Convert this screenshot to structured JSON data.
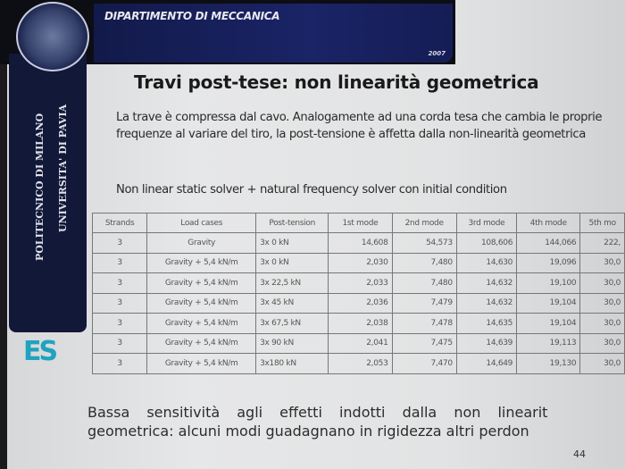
{
  "header": {
    "department": "DIPARTIMENTO DI MECCANICA",
    "year": "2007"
  },
  "sidebar": {
    "line1": "POLITECNICO DI MILANO",
    "line2": "UNIVERSITA' DI PAVIA",
    "logo": "ES"
  },
  "slide": {
    "title": "Travi post-tese: non linearità geometrica",
    "paragraph": "La trave è compressa dal cavo. Analogamente ad una corda tesa che cambia le proprie frequenze al variare del tiro, la post-tensione è affetta dalla non-linearità geometrica",
    "solver": "Non linear static solver + natural frequency solver con initial condition",
    "bottom_line1": "Bassa sensitività agli effetti indotti dalla non linearit",
    "bottom_line2": "geometrica: alcuni modi guadagnano in rigidezza altri perdon",
    "page_number": "44"
  },
  "table": {
    "headers": [
      "Strands",
      "Load cases",
      "Post-tension",
      "1st mode",
      "2nd mode",
      "3rd mode",
      "4th mode",
      "5th mo"
    ],
    "rows": [
      [
        "3",
        "Gravity",
        "3x 0 kN",
        "14,608",
        "54,573",
        "108,606",
        "144,066",
        "222,"
      ],
      [
        "3",
        "Gravity + 5,4 kN/m",
        "3x 0 kN",
        "2,030",
        "7,480",
        "14,630",
        "19,096",
        "30,0"
      ],
      [
        "3",
        "Gravity + 5,4 kN/m",
        "3x 22,5 kN",
        "2,033",
        "7,480",
        "14,632",
        "19,100",
        "30,0"
      ],
      [
        "3",
        "Gravity + 5,4 kN/m",
        "3x 45 kN",
        "2,036",
        "7,479",
        "14,632",
        "19,104",
        "30,0"
      ],
      [
        "3",
        "Gravity + 5,4 kN/m",
        "3x 67,5 kN",
        "2,038",
        "7,478",
        "14,635",
        "19,104",
        "30,0"
      ],
      [
        "3",
        "Gravity + 5,4 kN/m",
        "3x 90 kN",
        "2,041",
        "7,475",
        "14,639",
        "19,113",
        "30,0"
      ],
      [
        "3",
        "Gravity + 5,4 kN/m",
        "3x180 kN",
        "2,053",
        "7,470",
        "14,649",
        "19,130",
        "30,0"
      ]
    ]
  }
}
